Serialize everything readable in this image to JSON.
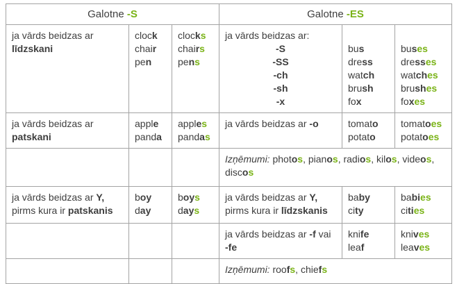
{
  "colors": {
    "green": "#7ab317",
    "text": "#3e3e3e"
  },
  "header": {
    "left": [
      [
        [
          "Galotne ",
          "n"
        ],
        [
          "-S",
          "g"
        ]
      ]
    ],
    "right": [
      [
        [
          "Galotne ",
          "n"
        ],
        [
          "-ES",
          "g"
        ]
      ]
    ]
  },
  "rows": {
    "consonant": {
      "rule": [
        [
          [
            "ja vārds beidzas ar ",
            "n"
          ],
          [
            "līdzskani",
            "b"
          ]
        ]
      ],
      "singular": [
        [
          [
            "cloc",
            "n"
          ],
          [
            "k",
            "b"
          ]
        ],
        [
          [
            "chai",
            "n"
          ],
          [
            "r",
            "b"
          ]
        ],
        [
          [
            "pe",
            "n"
          ],
          [
            "n",
            "b"
          ]
        ]
      ],
      "plural": [
        [
          [
            "cloc",
            "n"
          ],
          [
            "k",
            "b"
          ],
          [
            "s",
            "g"
          ]
        ],
        [
          [
            "chai",
            "n"
          ],
          [
            "r",
            "b"
          ],
          [
            "s",
            "g"
          ]
        ],
        [
          [
            "pe",
            "n"
          ],
          [
            "n",
            "b"
          ],
          [
            "s",
            "g"
          ]
        ]
      ]
    },
    "es_endings": {
      "rule_intro": [
        [
          [
            "ja vārds beidzas ar:",
            "n"
          ]
        ]
      ],
      "endings": [
        [
          [
            "-S",
            "b"
          ]
        ],
        [
          [
            "-SS",
            "b"
          ]
        ],
        [
          [
            "-ch",
            "b"
          ]
        ],
        [
          [
            "-sh",
            "b"
          ]
        ],
        [
          [
            "-x",
            "b"
          ]
        ]
      ],
      "singular": [
        [
          [
            "bu",
            "n"
          ],
          [
            "s",
            "b"
          ]
        ],
        [
          [
            "dre",
            "n"
          ],
          [
            "ss",
            "b"
          ]
        ],
        [
          [
            "wat",
            "n"
          ],
          [
            "ch",
            "b"
          ]
        ],
        [
          [
            "bru",
            "n"
          ],
          [
            "sh",
            "b"
          ]
        ],
        [
          [
            "fo",
            "n"
          ],
          [
            "x",
            "b"
          ]
        ]
      ],
      "plural": [
        [
          [
            "bu",
            "n"
          ],
          [
            "s",
            "b"
          ],
          [
            "es",
            "g"
          ]
        ],
        [
          [
            "dre",
            "n"
          ],
          [
            "ss",
            "b"
          ],
          [
            "es",
            "g"
          ]
        ],
        [
          [
            "wat",
            "n"
          ],
          [
            "ch",
            "b"
          ],
          [
            "es",
            "g"
          ]
        ],
        [
          [
            "bru",
            "n"
          ],
          [
            "sh",
            "b"
          ],
          [
            "es",
            "g"
          ]
        ],
        [
          [
            "fo",
            "n"
          ],
          [
            "x",
            "b"
          ],
          [
            "es",
            "g"
          ]
        ]
      ]
    },
    "vowel": {
      "rule": [
        [
          [
            "ja vārds beidzas ar ",
            "n"
          ],
          [
            "patskani",
            "b"
          ]
        ]
      ],
      "singular": [
        [
          [
            "appl",
            "n"
          ],
          [
            "e",
            "b"
          ]
        ],
        [
          [
            "pand",
            "n"
          ],
          [
            "a",
            "b"
          ]
        ]
      ],
      "plural": [
        [
          [
            "appl",
            "n"
          ],
          [
            "e",
            "b"
          ],
          [
            "s",
            "g"
          ]
        ],
        [
          [
            "pand",
            "n"
          ],
          [
            "a",
            "b"
          ],
          [
            "s",
            "g"
          ]
        ]
      ]
    },
    "o_ending": {
      "rule": [
        [
          [
            "ja vārds beidzas ar ",
            "n"
          ],
          [
            "-o",
            "b"
          ]
        ]
      ],
      "singular": [
        [
          [
            "tomat",
            "n"
          ],
          [
            "o",
            "b"
          ]
        ],
        [
          [
            "potat",
            "n"
          ],
          [
            "o",
            "b"
          ]
        ]
      ],
      "plural": [
        [
          [
            "tomat",
            "n"
          ],
          [
            "o",
            "b"
          ],
          [
            "es",
            "g"
          ]
        ],
        [
          [
            "potat",
            "n"
          ],
          [
            "o",
            "b"
          ],
          [
            "es",
            "g"
          ]
        ]
      ]
    },
    "o_exceptions": [
      [
        [
          "Izņēmumi:",
          "i"
        ],
        [
          " ",
          "n"
        ],
        [
          "phot",
          "n"
        ],
        [
          "o",
          "b"
        ],
        [
          "s",
          "g"
        ],
        [
          ", ",
          "n"
        ],
        [
          "pian",
          "n"
        ],
        [
          "o",
          "b"
        ],
        [
          "s",
          "g"
        ],
        [
          ", ",
          "n"
        ],
        [
          "radi",
          "n"
        ],
        [
          "o",
          "b"
        ],
        [
          "s",
          "g"
        ],
        [
          ", ",
          "n"
        ],
        [
          "kil",
          "n"
        ],
        [
          "o",
          "b"
        ],
        [
          "s",
          "g"
        ],
        [
          ", ",
          "n"
        ],
        [
          "vide",
          "n"
        ],
        [
          "o",
          "b"
        ],
        [
          "s",
          "g"
        ],
        [
          ", ",
          "n"
        ],
        [
          "disc",
          "n"
        ],
        [
          "o",
          "b"
        ],
        [
          "s",
          "g"
        ]
      ]
    ],
    "y_vowel": {
      "rule": [
        [
          [
            "ja vārds beidzas ar ",
            "n"
          ],
          [
            "Y,",
            "b"
          ],
          [
            " pirms kura ir ",
            "n"
          ],
          [
            "patskanis",
            "b"
          ]
        ]
      ],
      "singular": [
        [
          [
            "b",
            "n"
          ],
          [
            "oy",
            "b"
          ]
        ],
        [
          [
            "d",
            "n"
          ],
          [
            "ay",
            "b"
          ]
        ]
      ],
      "plural": [
        [
          [
            "b",
            "n"
          ],
          [
            "oy",
            "b"
          ],
          [
            "s",
            "g"
          ]
        ],
        [
          [
            "d",
            "n"
          ],
          [
            "ay",
            "b"
          ],
          [
            "s",
            "g"
          ]
        ]
      ]
    },
    "y_consonant": {
      "rule": [
        [
          [
            "ja vārds beidzas ar ",
            "n"
          ],
          [
            "Y,",
            "b"
          ],
          [
            " pirms kura ir ",
            "n"
          ],
          [
            "līdzskanis",
            "b"
          ]
        ]
      ],
      "singular": [
        [
          [
            "ba",
            "n"
          ],
          [
            "by",
            "b"
          ]
        ],
        [
          [
            "ci",
            "n"
          ],
          [
            "ty",
            "b"
          ]
        ]
      ],
      "plural": [
        [
          [
            "ba",
            "n"
          ],
          [
            "bi",
            "b"
          ],
          [
            "es",
            "g"
          ]
        ],
        [
          [
            "ci",
            "n"
          ],
          [
            "ti",
            "b"
          ],
          [
            "es",
            "g"
          ]
        ]
      ]
    },
    "f_fe": {
      "rule": [
        [
          [
            "ja vārds beidzas ar ",
            "n"
          ],
          [
            "-f",
            "b"
          ],
          [
            " vai ",
            "n"
          ],
          [
            "-fe",
            "b"
          ]
        ]
      ],
      "singular": [
        [
          [
            "kni",
            "n"
          ],
          [
            "fe",
            "b"
          ]
        ],
        [
          [
            "lea",
            "n"
          ],
          [
            "f",
            "b"
          ]
        ]
      ],
      "plural": [
        [
          [
            "kni",
            "n"
          ],
          [
            "v",
            "b"
          ],
          [
            "es",
            "g"
          ]
        ],
        [
          [
            "lea",
            "n"
          ],
          [
            "v",
            "b"
          ],
          [
            "es",
            "g"
          ]
        ]
      ]
    },
    "f_exceptions": [
      [
        [
          "Izņēmumi:",
          "i"
        ],
        [
          " roo",
          "n"
        ],
        [
          "f",
          "b"
        ],
        [
          "s",
          "g"
        ],
        [
          ", chie",
          "n"
        ],
        [
          "f",
          "b"
        ],
        [
          "s",
          "g"
        ]
      ]
    ]
  }
}
